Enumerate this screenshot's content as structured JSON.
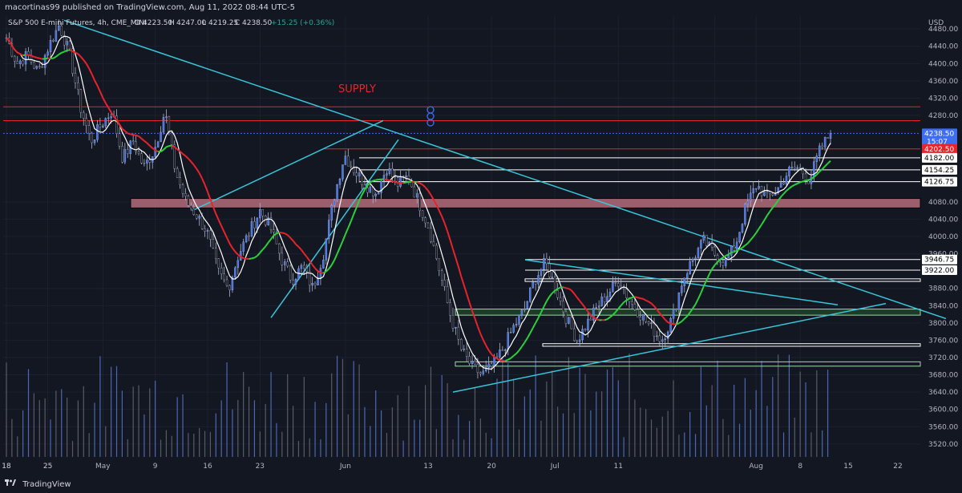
{
  "header": {
    "published_by": "macortinas99 published on TradingView.com, Aug 11, 2022 08:44 UTC-5",
    "symbol": "S&P 500 E-mini Futures, 4h, CME_MINI",
    "open_label": "O",
    "open": "4223.50",
    "high_label": "H",
    "high": "4247.00",
    "low_label": "L",
    "low": "4219.25",
    "close_label": "C",
    "close": "4238.50",
    "change": "+15.25 (+0.36%)"
  },
  "footer": {
    "brand": "TradingView"
  },
  "colors": {
    "background": "#131722",
    "candle_up": "#3d6ef0",
    "candle_down": "#111111",
    "ma_fast": "#ffffff",
    "ma_mid_up": "#2ad13b",
    "ma_mid_down": "#e8232b",
    "trendline": "#38c6d9",
    "resistance": "#e8232b",
    "supply_zone": "#c97686"
  },
  "chart_data": {
    "type": "candlestick",
    "currency_label": "USD",
    "y_axis": {
      "range": [
        3490,
        4510
      ],
      "ticks": [
        "4480.00",
        "4440.00",
        "4400.00",
        "4360.00",
        "4320.00",
        "4280.00",
        "4080.00",
        "4040.00",
        "4000.00",
        "3960.00",
        "3880.00",
        "3840.00",
        "3800.00",
        "3760.00",
        "3720.00",
        "3680.00",
        "3640.00",
        "3600.00",
        "3560.00",
        "3520.00"
      ]
    },
    "x_axis": {
      "ticks": [
        "18",
        "25",
        "May",
        "9",
        "16",
        "23",
        "Jun",
        "13",
        "20",
        "Jul",
        "11",
        "18",
        "25",
        "Aug",
        "8",
        "15",
        "22"
      ]
    },
    "annotations": {
      "supply_label": "SUPPLY"
    },
    "price_labels": [
      {
        "text": "4238.50",
        "sub": "15:07",
        "value": 4238.5,
        "style": "current"
      },
      {
        "text": "4202.50",
        "value": 4202.5,
        "style": "red"
      },
      {
        "text": "4182.00",
        "value": 4182,
        "style": "white"
      },
      {
        "text": "4154.25",
        "value": 4154.25,
        "style": "white"
      },
      {
        "text": "4126.75",
        "value": 4126.75,
        "style": "white"
      },
      {
        "text": "3946.75",
        "value": 3946.75,
        "style": "white"
      },
      {
        "text": "3922.00",
        "value": 3922,
        "style": "white"
      }
    ],
    "horizontal_levels": [
      {
        "value": 4300,
        "color": "red"
      },
      {
        "value": 4268,
        "color": "red"
      },
      {
        "value": 4202.5,
        "color": "red"
      },
      {
        "value": 4182,
        "color": "white"
      },
      {
        "value": 4154.25,
        "color": "white"
      },
      {
        "value": 4126.75,
        "color": "white"
      },
      {
        "value": 3946.75,
        "color": "white"
      },
      {
        "value": 3922,
        "color": "white"
      }
    ],
    "price_path": [
      [
        4460,
        "18"
      ],
      [
        4400,
        ""
      ],
      [
        4420,
        ""
      ],
      [
        4380,
        ""
      ],
      [
        4440,
        "25"
      ],
      [
        4490,
        ""
      ],
      [
        4420,
        ""
      ],
      [
        4300,
        ""
      ],
      [
        4220,
        ""
      ],
      [
        4260,
        "May"
      ],
      [
        4290,
        ""
      ],
      [
        4180,
        ""
      ],
      [
        4220,
        ""
      ],
      [
        4160,
        ""
      ],
      [
        4200,
        "9"
      ],
      [
        4290,
        ""
      ],
      [
        4150,
        ""
      ],
      [
        4080,
        ""
      ],
      [
        4050,
        ""
      ],
      [
        4010,
        "16"
      ],
      [
        3920,
        ""
      ],
      [
        3880,
        ""
      ],
      [
        3960,
        ""
      ],
      [
        4010,
        ""
      ],
      [
        4060,
        "23"
      ],
      [
        4020,
        ""
      ],
      [
        3950,
        ""
      ],
      [
        3900,
        ""
      ],
      [
        3930,
        ""
      ],
      [
        3880,
        ""
      ],
      [
        3960,
        ""
      ],
      [
        4090,
        ""
      ],
      [
        4190,
        "Jun"
      ],
      [
        4150,
        ""
      ],
      [
        4120,
        ""
      ],
      [
        4100,
        ""
      ],
      [
        4160,
        ""
      ],
      [
        4120,
        ""
      ],
      [
        4140,
        ""
      ],
      [
        4080,
        ""
      ],
      [
        4020,
        "13"
      ],
      [
        3920,
        ""
      ],
      [
        3820,
        ""
      ],
      [
        3740,
        ""
      ],
      [
        3700,
        ""
      ],
      [
        3680,
        ""
      ],
      [
        3700,
        "20"
      ],
      [
        3740,
        ""
      ],
      [
        3790,
        ""
      ],
      [
        3830,
        ""
      ],
      [
        3900,
        ""
      ],
      [
        3940,
        ""
      ],
      [
        3880,
        "Jul"
      ],
      [
        3810,
        ""
      ],
      [
        3760,
        ""
      ],
      [
        3800,
        ""
      ],
      [
        3840,
        ""
      ],
      [
        3870,
        ""
      ],
      [
        3900,
        "11"
      ],
      [
        3850,
        ""
      ],
      [
        3820,
        ""
      ],
      [
        3790,
        ""
      ],
      [
        3760,
        ""
      ],
      [
        3810,
        "18"
      ],
      [
        3900,
        ""
      ],
      [
        3950,
        ""
      ],
      [
        3990,
        ""
      ],
      [
        3960,
        "25"
      ],
      [
        3940,
        ""
      ],
      [
        3980,
        ""
      ],
      [
        4070,
        ""
      ],
      [
        4120,
        "Aug"
      ],
      [
        4090,
        ""
      ],
      [
        4110,
        ""
      ],
      [
        4150,
        ""
      ],
      [
        4160,
        "8"
      ],
      [
        4130,
        ""
      ],
      [
        4200,
        ""
      ],
      [
        4238.5,
        ""
      ]
    ]
  }
}
